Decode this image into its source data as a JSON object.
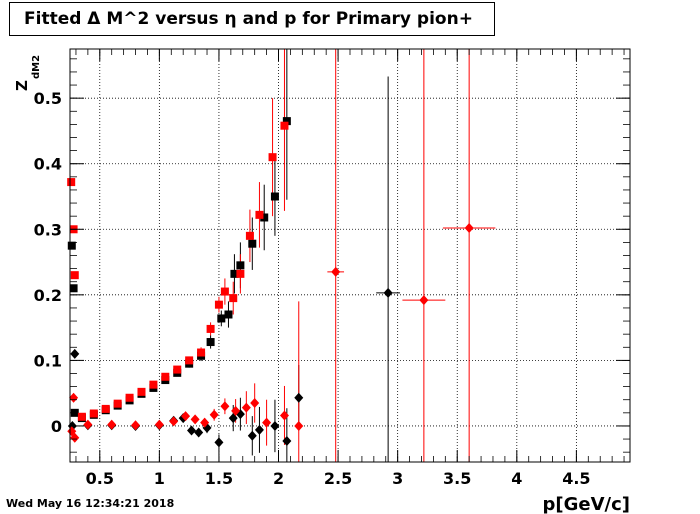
{
  "title": "Fitted Δ M^2 versus η and p for Primary pion+",
  "timestamp": "Wed May 16 12:34:21 2018",
  "chart_data": {
    "type": "scatter",
    "xlabel": "p[GeV/c]",
    "ylabel": "Z",
    "ylabel_subscript": "dM2",
    "xlim": [
      0.25,
      4.95
    ],
    "ylim": [
      -0.055,
      0.575
    ],
    "grid": true,
    "x_ticks": [
      0.5,
      1,
      1.5,
      2,
      2.5,
      3,
      3.5,
      4,
      4.5
    ],
    "x_tick_labels": [
      "0.5",
      "1",
      "1.5",
      "2",
      "2.5",
      "3",
      "3.5",
      "4",
      "4.5"
    ],
    "y_ticks": [
      0,
      0.1,
      0.2,
      0.3,
      0.4,
      0.5
    ],
    "y_tick_labels": [
      "0",
      "0.1",
      "0.2",
      "0.3",
      "0.4",
      "0.5"
    ],
    "colors": {
      "black": "#000000",
      "red": "#ff0000"
    },
    "series": [
      {
        "color": "black",
        "marker": "square",
        "points": [
          {
            "x": 0.265,
            "y": 0.275,
            "ey": 0.0
          },
          {
            "x": 0.28,
            "y": 0.21,
            "ey": 0.0
          },
          {
            "x": 0.29,
            "y": 0.02,
            "ey": 0.0
          },
          {
            "x": 0.35,
            "y": 0.012,
            "ey": 0.0
          },
          {
            "x": 0.45,
            "y": 0.017,
            "ey": 0.0
          },
          {
            "x": 0.55,
            "y": 0.024,
            "ey": 0.0
          },
          {
            "x": 0.65,
            "y": 0.031,
            "ey": 0.0
          },
          {
            "x": 0.75,
            "y": 0.039,
            "ey": 0.0
          },
          {
            "x": 0.85,
            "y": 0.049,
            "ey": 0.0
          },
          {
            "x": 0.95,
            "y": 0.058,
            "ey": 0.0
          },
          {
            "x": 1.05,
            "y": 0.07,
            "ey": 0.0
          },
          {
            "x": 1.15,
            "y": 0.081,
            "ey": 0.0
          },
          {
            "x": 1.25,
            "y": 0.095,
            "ey": 0.006
          },
          {
            "x": 1.35,
            "y": 0.107,
            "ey": 0.008
          },
          {
            "x": 1.43,
            "y": 0.128,
            "ey": 0.01
          },
          {
            "x": 1.52,
            "y": 0.164,
            "ey": 0.012
          },
          {
            "x": 1.58,
            "y": 0.17,
            "ey": 0.02
          },
          {
            "x": 1.63,
            "y": 0.232,
            "ey": 0.03
          },
          {
            "x": 1.68,
            "y": 0.245,
            "ey": 0.035
          },
          {
            "x": 1.78,
            "y": 0.278,
            "ey": 0.04
          },
          {
            "x": 1.88,
            "y": 0.318,
            "ey": 0.05
          },
          {
            "x": 1.97,
            "y": 0.35,
            "ey": 0.06
          },
          {
            "x": 2.07,
            "y": 0.465,
            "ey": 0.12
          }
        ]
      },
      {
        "color": "red",
        "marker": "square",
        "points": [
          {
            "x": 0.26,
            "y": 0.372,
            "ey": 0.0
          },
          {
            "x": 0.28,
            "y": 0.3,
            "ey": 0.0
          },
          {
            "x": 0.29,
            "y": 0.23,
            "ey": 0.0
          },
          {
            "x": 0.35,
            "y": 0.014,
            "ey": 0.0
          },
          {
            "x": 0.45,
            "y": 0.019,
            "ey": 0.0
          },
          {
            "x": 0.55,
            "y": 0.026,
            "ey": 0.0
          },
          {
            "x": 0.65,
            "y": 0.034,
            "ey": 0.0
          },
          {
            "x": 0.75,
            "y": 0.043,
            "ey": 0.0
          },
          {
            "x": 0.85,
            "y": 0.052,
            "ey": 0.0
          },
          {
            "x": 0.95,
            "y": 0.063,
            "ey": 0.0
          },
          {
            "x": 1.05,
            "y": 0.075,
            "ey": 0.0
          },
          {
            "x": 1.15,
            "y": 0.086,
            "ey": 0.0
          },
          {
            "x": 1.25,
            "y": 0.1,
            "ey": 0.006
          },
          {
            "x": 1.35,
            "y": 0.112,
            "ey": 0.008
          },
          {
            "x": 1.43,
            "y": 0.148,
            "ey": 0.01
          },
          {
            "x": 1.5,
            "y": 0.185,
            "ey": 0.012
          },
          {
            "x": 1.55,
            "y": 0.205,
            "ey": 0.02
          },
          {
            "x": 1.62,
            "y": 0.195,
            "ey": 0.025
          },
          {
            "x": 1.68,
            "y": 0.232,
            "ey": 0.03
          },
          {
            "x": 1.76,
            "y": 0.29,
            "ey": 0.04
          },
          {
            "x": 1.84,
            "y": 0.322,
            "ey": 0.05
          },
          {
            "x": 1.95,
            "y": 0.41,
            "ey": 0.09
          },
          {
            "x": 2.05,
            "y": 0.458,
            "ey": 0.13
          }
        ]
      },
      {
        "color": "black",
        "marker": "diamond",
        "points": [
          {
            "x": 0.27,
            "y": 0.0,
            "ey": 0.0
          },
          {
            "x": 0.29,
            "y": 0.11,
            "ey": 0.0
          },
          {
            "x": 0.4,
            "y": 0.001,
            "ey": 0.0
          },
          {
            "x": 0.6,
            "y": 0.001,
            "ey": 0.0
          },
          {
            "x": 0.8,
            "y": 0.0,
            "ey": 0.0
          },
          {
            "x": 1.0,
            "y": 0.001,
            "ey": 0.0
          },
          {
            "x": 1.12,
            "y": 0.008,
            "ey": 0.004
          },
          {
            "x": 1.2,
            "y": 0.012,
            "ey": 0.004
          },
          {
            "x": 1.27,
            "y": -0.007,
            "ey": 0.005
          },
          {
            "x": 1.33,
            "y": -0.01,
            "ey": 0.006
          },
          {
            "x": 1.4,
            "y": -0.003,
            "ey": 0.008
          },
          {
            "x": 1.5,
            "y": -0.025,
            "ey": 0.012
          },
          {
            "x": 1.62,
            "y": 0.012,
            "ey": 0.02
          },
          {
            "x": 1.68,
            "y": 0.018,
            "ey": 0.025
          },
          {
            "x": 1.78,
            "y": -0.015,
            "ey": 0.03
          },
          {
            "x": 1.84,
            "y": -0.006,
            "ey": 0.035
          },
          {
            "x": 1.97,
            "y": 0.0,
            "ey": 0.04
          },
          {
            "x": 2.07,
            "y": -0.023,
            "ey": 0.05
          },
          {
            "x": 2.17,
            "y": 0.043,
            "ey": 0.05
          },
          {
            "x": 2.92,
            "y": 0.203,
            "ey": 0.33
          }
        ]
      },
      {
        "color": "red",
        "marker": "diamond",
        "points": [
          {
            "x": 0.265,
            "y": -0.008,
            "ey": 0.0
          },
          {
            "x": 0.28,
            "y": 0.043,
            "ey": 0.0
          },
          {
            "x": 0.29,
            "y": -0.018,
            "ey": 0.0
          },
          {
            "x": 0.4,
            "y": 0.002,
            "ey": 0.0
          },
          {
            "x": 0.6,
            "y": 0.002,
            "ey": 0.0
          },
          {
            "x": 0.8,
            "y": 0.001,
            "ey": 0.0
          },
          {
            "x": 1.0,
            "y": 0.002,
            "ey": 0.0
          },
          {
            "x": 1.12,
            "y": 0.007,
            "ey": 0.004
          },
          {
            "x": 1.22,
            "y": 0.015,
            "ey": 0.004
          },
          {
            "x": 1.3,
            "y": 0.01,
            "ey": 0.005
          },
          {
            "x": 1.38,
            "y": 0.005,
            "ey": 0.007
          },
          {
            "x": 1.46,
            "y": 0.017,
            "ey": 0.009
          },
          {
            "x": 1.55,
            "y": 0.03,
            "ey": 0.012
          },
          {
            "x": 1.64,
            "y": 0.023,
            "ey": 0.018
          },
          {
            "x": 1.73,
            "y": 0.028,
            "ey": 0.025
          },
          {
            "x": 1.8,
            "y": 0.035,
            "ey": 0.03
          },
          {
            "x": 1.9,
            "y": 0.005,
            "ey": 0.035
          },
          {
            "x": 2.05,
            "y": 0.016,
            "ey": 0.045
          },
          {
            "x": 2.17,
            "y": 0.0,
            "ey": 0.19
          },
          {
            "x": 2.48,
            "y": 0.235,
            "ey": 0.6
          },
          {
            "x": 3.22,
            "y": 0.192,
            "ey": 0.6
          },
          {
            "x": 3.6,
            "y": 0.302,
            "ey": 0.6
          }
        ]
      }
    ],
    "horizontal_error_points": [
      {
        "color": "black",
        "x": 2.92,
        "y": 0.203,
        "ex": 0.1
      },
      {
        "color": "red",
        "x": 2.48,
        "y": 0.235,
        "ex": 0.07
      },
      {
        "color": "red",
        "x": 3.22,
        "y": 0.192,
        "ex": 0.18
      },
      {
        "color": "red",
        "x": 3.6,
        "y": 0.302,
        "ex": 0.22
      }
    ]
  }
}
